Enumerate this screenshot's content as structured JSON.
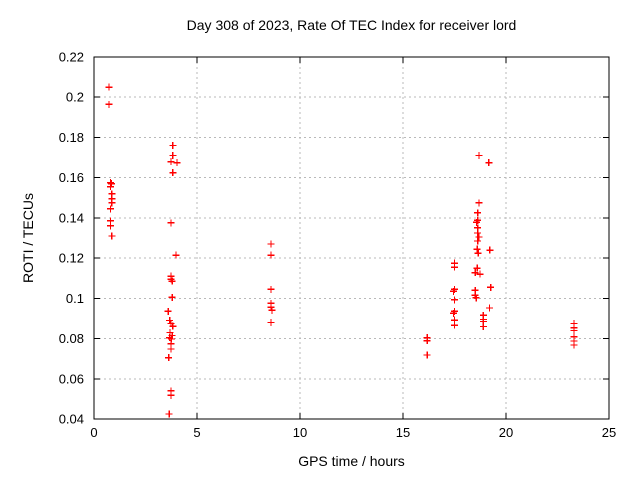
{
  "page": {
    "background": "#ffffff"
  },
  "chart_data": {
    "type": "scatter",
    "title": "Day 308 of 2023, Rate Of TEC Index for receiver lord",
    "xlabel": "GPS time / hours",
    "ylabel": "ROTI / TECUs",
    "xlim": [
      0,
      25
    ],
    "ylim": [
      0.04,
      0.22
    ],
    "xticks": [
      0,
      5,
      10,
      15,
      20,
      25
    ],
    "xtick_labels": [
      "0",
      "5",
      "10",
      "15",
      "20",
      "25"
    ],
    "yticks": [
      0.04,
      0.06,
      0.08,
      0.1,
      0.12,
      0.14,
      0.16,
      0.18,
      0.2,
      0.22
    ],
    "ytick_labels": [
      "0.04",
      "0.06",
      "0.08",
      "0.1",
      "0.12",
      "0.14",
      "0.16",
      "0.18",
      "0.2",
      "0.22"
    ],
    "grid": true,
    "legend": "none",
    "marker_style": "plus",
    "marker_color": "#ff0000",
    "border_color": "#000000",
    "grid_color": "#b9b9b9",
    "points": [
      [
        0.73,
        0.205
      ],
      [
        0.73,
        0.1965
      ],
      [
        0.8,
        0.1575
      ],
      [
        0.84,
        0.157
      ],
      [
        0.8,
        0.1555
      ],
      [
        0.87,
        0.152
      ],
      [
        0.87,
        0.1495
      ],
      [
        0.87,
        0.1475
      ],
      [
        0.8,
        0.1445
      ],
      [
        0.8,
        0.1385
      ],
      [
        0.8,
        0.136
      ],
      [
        0.87,
        0.131
      ],
      [
        3.83,
        0.176
      ],
      [
        3.83,
        0.171
      ],
      [
        3.74,
        0.168
      ],
      [
        4.03,
        0.1675
      ],
      [
        3.83,
        0.1625
      ],
      [
        3.74,
        0.1375
      ],
      [
        3.98,
        0.1215
      ],
      [
        3.74,
        0.111
      ],
      [
        3.74,
        0.1095
      ],
      [
        3.79,
        0.1085
      ],
      [
        3.79,
        0.1005
      ],
      [
        3.6,
        0.0935
      ],
      [
        3.67,
        0.089
      ],
      [
        3.74,
        0.0875
      ],
      [
        3.83,
        0.0862
      ],
      [
        3.69,
        0.083
      ],
      [
        3.79,
        0.0815
      ],
      [
        3.67,
        0.0805
      ],
      [
        3.76,
        0.0798
      ],
      [
        3.74,
        0.0775
      ],
      [
        3.74,
        0.0748
      ],
      [
        3.62,
        0.0705
      ],
      [
        3.74,
        0.054
      ],
      [
        3.74,
        0.0518
      ],
      [
        3.65,
        0.0425
      ],
      [
        8.59,
        0.127
      ],
      [
        8.59,
        0.1215
      ],
      [
        8.59,
        0.1045
      ],
      [
        8.59,
        0.0975
      ],
      [
        8.59,
        0.0955
      ],
      [
        8.64,
        0.094
      ],
      [
        8.59,
        0.088
      ],
      [
        16.17,
        0.0805
      ],
      [
        16.17,
        0.079
      ],
      [
        16.17,
        0.0718
      ],
      [
        17.5,
        0.1175
      ],
      [
        17.5,
        0.1155
      ],
      [
        17.5,
        0.1045
      ],
      [
        17.45,
        0.1035
      ],
      [
        17.5,
        0.0992
      ],
      [
        17.5,
        0.0935
      ],
      [
        17.45,
        0.0925
      ],
      [
        17.5,
        0.0892
      ],
      [
        17.5,
        0.0867
      ],
      [
        18.69,
        0.171
      ],
      [
        19.17,
        0.1675
      ],
      [
        18.69,
        0.1475
      ],
      [
        18.62,
        0.1425
      ],
      [
        18.62,
        0.1388
      ],
      [
        18.57,
        0.1378
      ],
      [
        18.62,
        0.135
      ],
      [
        18.62,
        0.1325
      ],
      [
        18.69,
        0.1305
      ],
      [
        18.62,
        0.1285
      ],
      [
        18.6,
        0.1245
      ],
      [
        18.65,
        0.1225
      ],
      [
        19.22,
        0.124
      ],
      [
        18.6,
        0.115
      ],
      [
        18.5,
        0.1128
      ],
      [
        18.74,
        0.112
      ],
      [
        19.25,
        0.1055
      ],
      [
        18.5,
        0.104
      ],
      [
        18.5,
        0.1015
      ],
      [
        18.55,
        0.1002
      ],
      [
        19.2,
        0.0952
      ],
      [
        18.9,
        0.0915
      ],
      [
        18.9,
        0.0895
      ],
      [
        18.9,
        0.0885
      ],
      [
        18.9,
        0.086
      ],
      [
        23.3,
        0.0875
      ],
      [
        23.3,
        0.0853
      ],
      [
        23.3,
        0.084
      ],
      [
        23.3,
        0.0808
      ],
      [
        23.3,
        0.0788
      ],
      [
        23.3,
        0.0768
      ]
    ]
  }
}
